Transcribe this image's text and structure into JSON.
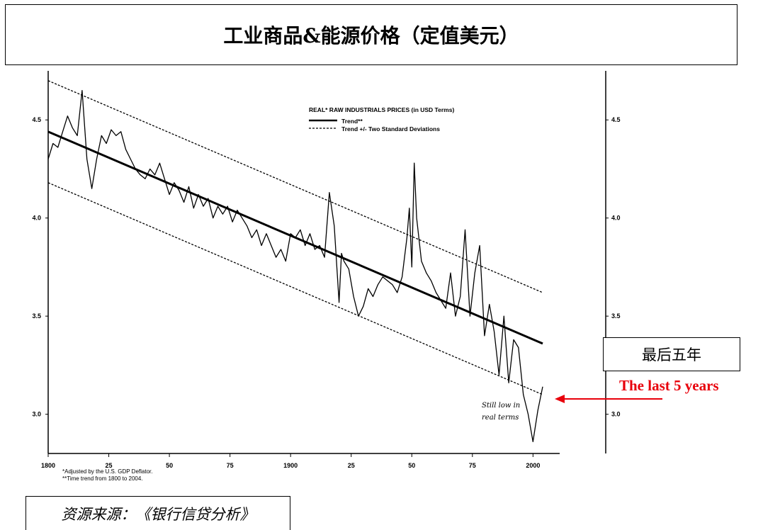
{
  "title": "工业商品&能源价格（定值美元）",
  "callout_cn": "最后五年",
  "callout_en": "The last 5 years",
  "source": "资源来源：《银行信贷分析》",
  "colors": {
    "accent": "#e8000b",
    "line": "#000000"
  },
  "chart_data": {
    "type": "line",
    "title": "REAL* RAW INDUSTRIALS PRICES (in USD Terms)",
    "legend": [
      "Trend**",
      "Trend +/- Two Standard Deviations"
    ],
    "legend_placement": "top-right",
    "x_tick_labels": [
      "1800",
      "25",
      "50",
      "75",
      "1900",
      "25",
      "50",
      "75",
      "2000"
    ],
    "x_ticks": [
      1800,
      1825,
      1850,
      1875,
      1900,
      1925,
      1950,
      1975,
      2000
    ],
    "y_ticks": [
      3.0,
      3.5,
      4.0,
      4.5
    ],
    "y_tick_labels": [
      "3.0",
      "3.5",
      "4.0",
      "4.5"
    ],
    "xlim": [
      1800,
      2030
    ],
    "ylim": [
      2.8,
      4.75
    ],
    "grid": false,
    "annotation": [
      "Still low in",
      "real terms"
    ],
    "footnotes": [
      "*Adjusted by the U.S. GDP Deflator.",
      "**Time trend from 1800 to 2004."
    ],
    "trend": {
      "x": [
        1800,
        2004
      ],
      "y": [
        4.44,
        3.36
      ]
    },
    "upper_band": {
      "x": [
        1800,
        2004
      ],
      "y": [
        4.7,
        3.62
      ]
    },
    "lower_band": {
      "x": [
        1800,
        2004
      ],
      "y": [
        4.18,
        3.1
      ]
    },
    "series": [
      {
        "x": [
          1800,
          1802,
          1804,
          1806,
          1808,
          1810,
          1812,
          1814,
          1816,
          1818,
          1820,
          1822,
          1824,
          1826,
          1828,
          1830,
          1832,
          1834,
          1836,
          1838,
          1840,
          1842,
          1844,
          1846,
          1848,
          1850,
          1852,
          1854,
          1856,
          1858,
          1860,
          1862,
          1864,
          1866,
          1868,
          1870,
          1872,
          1874,
          1876,
          1878,
          1880,
          1882,
          1884,
          1886,
          1888,
          1890,
          1892,
          1894,
          1896,
          1898,
          1900,
          1902,
          1904,
          1906,
          1908,
          1910,
          1912,
          1914,
          1916,
          1918,
          1920,
          1921,
          1922,
          1924,
          1926,
          1928,
          1930,
          1932,
          1934,
          1936,
          1938,
          1940,
          1942,
          1944,
          1946,
          1948,
          1949,
          1950,
          1951,
          1952,
          1954,
          1956,
          1958,
          1960,
          1962,
          1964,
          1966,
          1968,
          1970,
          1972,
          1974,
          1976,
          1978,
          1980,
          1982,
          1984,
          1986,
          1988,
          1990,
          1992,
          1994,
          1996,
          1998,
          2000,
          2002,
          2004
        ],
        "y": [
          4.3,
          4.38,
          4.36,
          4.44,
          4.52,
          4.46,
          4.42,
          4.65,
          4.3,
          4.15,
          4.3,
          4.42,
          4.38,
          4.45,
          4.42,
          4.44,
          4.35,
          4.3,
          4.25,
          4.22,
          4.2,
          4.25,
          4.22,
          4.28,
          4.2,
          4.12,
          4.18,
          4.14,
          4.08,
          4.16,
          4.05,
          4.12,
          4.06,
          4.1,
          4.0,
          4.06,
          4.02,
          4.06,
          3.98,
          4.04,
          4.0,
          3.96,
          3.9,
          3.94,
          3.86,
          3.92,
          3.86,
          3.8,
          3.84,
          3.78,
          3.92,
          3.9,
          3.94,
          3.86,
          3.92,
          3.84,
          3.86,
          3.8,
          4.13,
          3.96,
          3.57,
          3.82,
          3.78,
          3.74,
          3.6,
          3.5,
          3.55,
          3.64,
          3.6,
          3.66,
          3.7,
          3.68,
          3.66,
          3.62,
          3.7,
          3.9,
          4.05,
          3.75,
          4.28,
          4.0,
          3.78,
          3.72,
          3.68,
          3.62,
          3.58,
          3.54,
          3.72,
          3.5,
          3.6,
          3.94,
          3.5,
          3.72,
          3.86,
          3.4,
          3.56,
          3.42,
          3.2,
          3.5,
          3.16,
          3.38,
          3.34,
          3.1,
          3.0,
          2.86,
          3.02,
          3.14
        ]
      }
    ]
  }
}
